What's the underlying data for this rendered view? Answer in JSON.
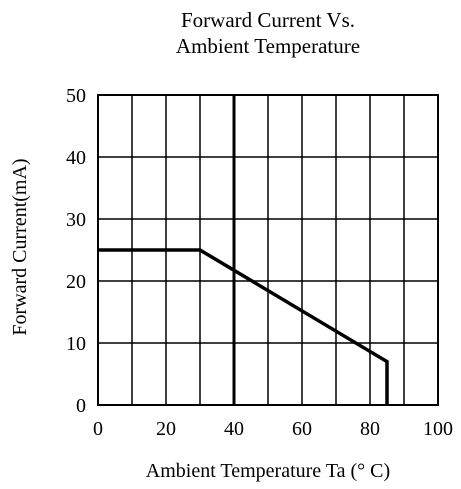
{
  "chart_data": {
    "type": "line",
    "title": "Forward  Current  Vs.",
    "subtitle": "Ambient Temperature",
    "xlabel": "Ambient  Temperature  Ta  (°  C)",
    "ylabel": "Forward Current(mA)",
    "xlim": [
      0,
      100
    ],
    "ylim": [
      0,
      50
    ],
    "x_ticks": [
      0,
      20,
      40,
      60,
      80,
      100
    ],
    "y_ticks": [
      0,
      10,
      20,
      30,
      40,
      50
    ],
    "x_tick_labels": [
      "0",
      "20",
      "40",
      "60",
      "80",
      "100"
    ],
    "y_tick_labels": [
      "0",
      "10",
      "20",
      "30",
      "40",
      "50"
    ],
    "grid": true,
    "grid_x_lines": [
      10,
      20,
      30,
      40,
      50,
      60,
      70,
      80,
      90
    ],
    "grid_y_lines": [
      10,
      20,
      30,
      40
    ],
    "highlighted_vertical_line_x": 40,
    "series": [
      {
        "x": [
          0,
          30,
          85,
          85
        ],
        "y": [
          25,
          25,
          7,
          0
        ]
      }
    ],
    "colors": {
      "line": "#000000",
      "grid": "#000000",
      "background": "#ffffff"
    }
  }
}
